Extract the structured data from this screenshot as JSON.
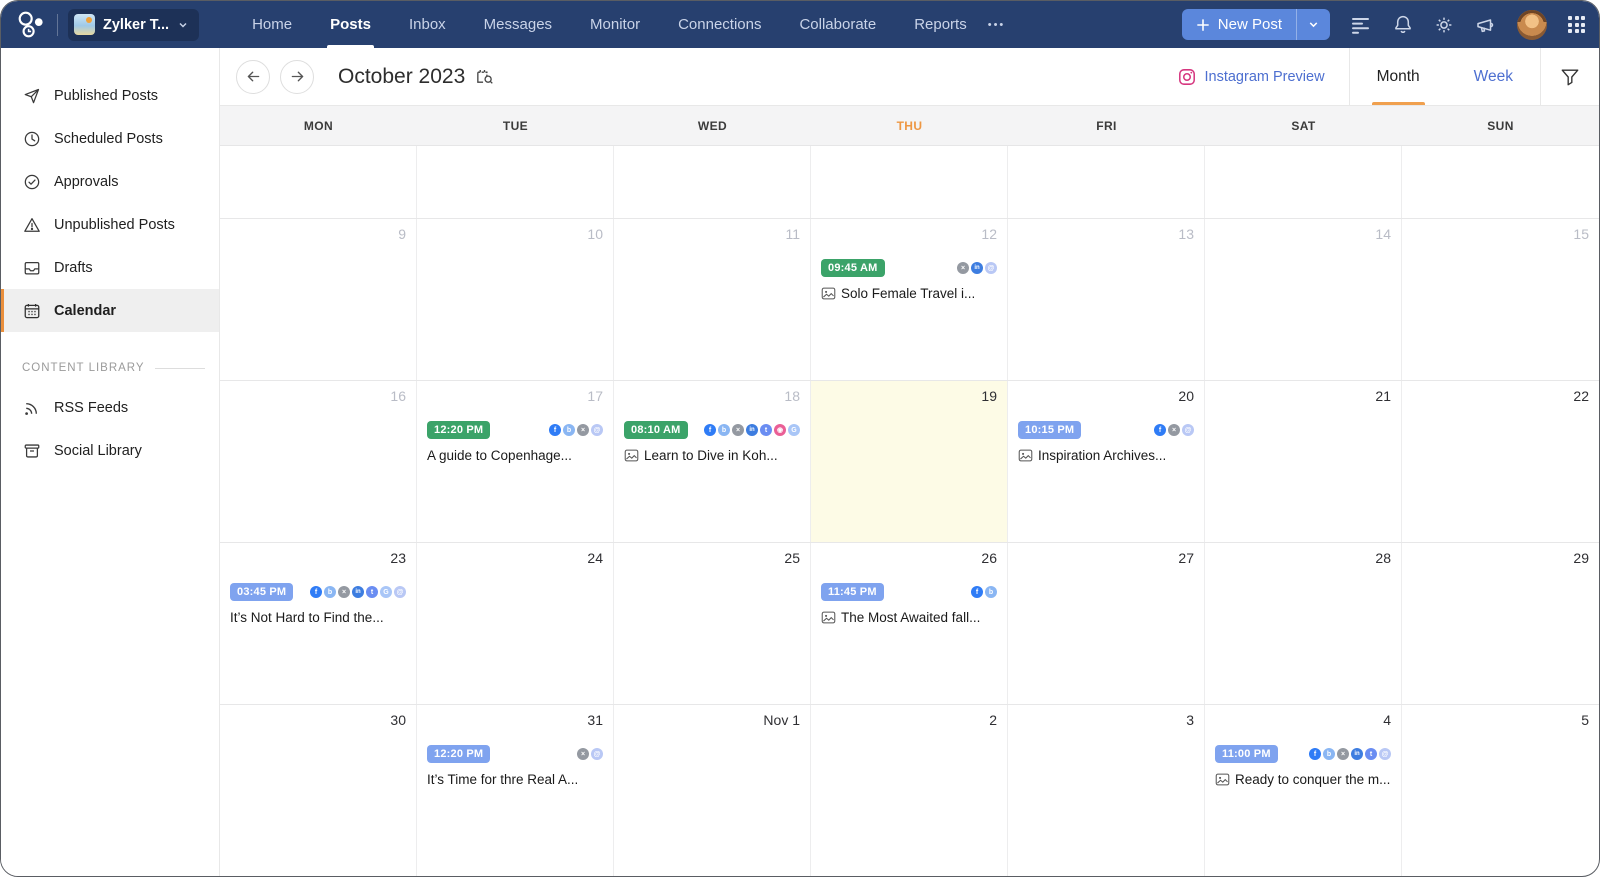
{
  "navbar": {
    "brand_label": "Zylker T...",
    "items": [
      {
        "label": "Home"
      },
      {
        "label": "Posts",
        "active": true
      },
      {
        "label": "Inbox"
      },
      {
        "label": "Messages"
      },
      {
        "label": "Monitor"
      },
      {
        "label": "Connections"
      },
      {
        "label": "Collaborate"
      },
      {
        "label": "Reports"
      }
    ],
    "more_label": "•••",
    "new_post_label": "New Post"
  },
  "sidebar": {
    "items": [
      {
        "label": "Published Posts",
        "icon": "send"
      },
      {
        "label": "Scheduled Posts",
        "icon": "clock"
      },
      {
        "label": "Approvals",
        "icon": "check"
      },
      {
        "label": "Unpublished Posts",
        "icon": "warning"
      },
      {
        "label": "Drafts",
        "icon": "drafts"
      },
      {
        "label": "Calendar",
        "icon": "calendar",
        "active": true
      }
    ],
    "section_label": "CONTENT LIBRARY",
    "library_items": [
      {
        "label": "RSS Feeds",
        "icon": "rss"
      },
      {
        "label": "Social Library",
        "icon": "library"
      }
    ]
  },
  "calendar": {
    "title": "October 2023",
    "instagram_preview_label": "Instagram Preview",
    "month_label": "Month",
    "week_label": "Week",
    "day_headers": [
      "MON",
      "TUE",
      "WED",
      "THU",
      "FRI",
      "SAT",
      "SUN"
    ],
    "today_col": 3,
    "weeks": [
      {
        "short": true,
        "cells": [
          {},
          {},
          {},
          {},
          {},
          {},
          {}
        ]
      },
      {
        "cells": [
          {
            "date": "9",
            "past": true
          },
          {
            "date": "10",
            "past": true
          },
          {
            "date": "11",
            "past": true
          },
          {
            "date": "12",
            "past": true,
            "event": {
              "time": "09:45 AM",
              "badge": "green",
              "networks": [
                "x",
                "linkedin",
                "threads"
              ],
              "has_image": true,
              "title": "Solo Female Travel i..."
            }
          },
          {
            "date": "13",
            "past": true
          },
          {
            "date": "14",
            "past": true
          },
          {
            "date": "15",
            "past": true
          }
        ]
      },
      {
        "cells": [
          {
            "date": "16",
            "past": true
          },
          {
            "date": "17",
            "past": true,
            "event": {
              "time": "12:20 PM",
              "badge": "green",
              "networks": [
                "facebook",
                "bluesky",
                "x",
                "threads"
              ],
              "has_image": false,
              "title": "A guide to Copenhage..."
            }
          },
          {
            "date": "18",
            "past": true,
            "event": {
              "time": "08:10 AM",
              "badge": "green",
              "networks": [
                "facebook",
                "bluesky",
                "x",
                "linkedin",
                "tumblr",
                "instagram",
                "google"
              ],
              "has_image": true,
              "title": "Learn to Dive in Koh..."
            }
          },
          {
            "date": "19",
            "today": true
          },
          {
            "date": "20",
            "event": {
              "time": "10:15 PM",
              "badge": "blue",
              "networks": [
                "facebook",
                "x",
                "threads"
              ],
              "has_image": true,
              "title": "Inspiration Archives..."
            }
          },
          {
            "date": "21"
          },
          {
            "date": "22"
          }
        ]
      },
      {
        "cells": [
          {
            "date": "23",
            "event": {
              "time": "03:45 PM",
              "badge": "blue",
              "networks": [
                "facebook",
                "bluesky",
                "x",
                "linkedin",
                "tumblr",
                "google",
                "threads"
              ],
              "has_image": false,
              "title": "It’s Not Hard to Find the..."
            }
          },
          {
            "date": "24"
          },
          {
            "date": "25"
          },
          {
            "date": "26",
            "event": {
              "time": "11:45 PM",
              "badge": "blue",
              "networks": [
                "facebook",
                "bluesky"
              ],
              "has_image": true,
              "title": "The Most Awaited fall..."
            }
          },
          {
            "date": "27"
          },
          {
            "date": "28"
          },
          {
            "date": "29"
          }
        ]
      },
      {
        "grow": true,
        "cells": [
          {
            "date": "30"
          },
          {
            "date": "31",
            "event": {
              "time": "12:20 PM",
              "badge": "blue",
              "networks": [
                "x",
                "threads"
              ],
              "has_image": false,
              "title": "It’s Time for thre Real A..."
            }
          },
          {
            "date": "Nov 1"
          },
          {
            "date": "2"
          },
          {
            "date": "3"
          },
          {
            "date": "4",
            "event": {
              "time": "11:00 PM",
              "badge": "blue",
              "networks": [
                "facebook",
                "bluesky",
                "x",
                "linkedin",
                "tumblr",
                "threads"
              ],
              "has_image": true,
              "title": "Ready to conquer the m..."
            }
          },
          {
            "date": "5"
          }
        ]
      }
    ]
  },
  "network_styles": {
    "facebook": {
      "bg": "#2F7CF6",
      "glyph": "f"
    },
    "bluesky": {
      "bg": "#8AB6F3",
      "glyph": "b"
    },
    "x": {
      "bg": "#9499A1",
      "glyph": "×"
    },
    "linkedin": {
      "bg": "#3D7DE0",
      "glyph": "in"
    },
    "tumblr": {
      "bg": "#6A8DF2",
      "glyph": "t"
    },
    "instagram": {
      "bg": "#EA5F96",
      "glyph": "◉"
    },
    "threads": {
      "bg": "#B9C8F5",
      "glyph": "@"
    },
    "google": {
      "bg": "#A9C6F7",
      "glyph": "G"
    }
  },
  "colors": {
    "navbar_bg": "#27406F",
    "accent_orange": "#EA8F3C",
    "badge_green": "#3BA369",
    "badge_blue": "#7FA3EF",
    "link_blue": "#4D6FD0",
    "today_cell_bg": "#FDFBE6"
  }
}
